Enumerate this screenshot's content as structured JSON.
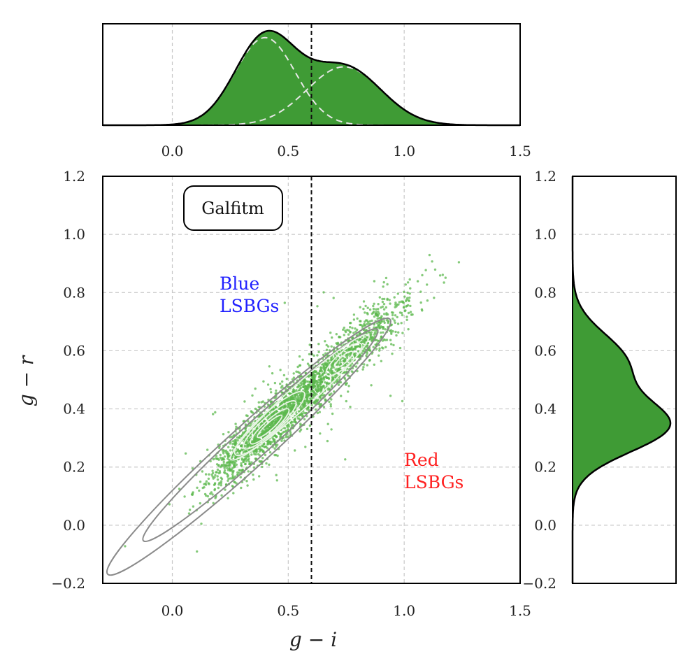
{
  "colors": {
    "hist_fill": "#3f9b35",
    "scatter": "#5cb84d",
    "inner_contour": "#e8f4e4",
    "outer_contour": "#8a8a8a",
    "blue_label": "#2020ff",
    "red_label": "#ff2020"
  },
  "chart_data": [
    {
      "type": "scatter",
      "panel": "main",
      "xlabel": "g − i",
      "ylabel": "g − r",
      "xlim": [
        -0.3,
        1.5
      ],
      "ylim": [
        -0.2,
        1.2
      ],
      "xticks": [
        "0.0",
        "0.5",
        "1.0",
        "1.5"
      ],
      "yticks": [
        "−0.2",
        "0.0",
        "0.2",
        "0.4",
        "0.6",
        "0.8",
        "1.0",
        "1.2"
      ],
      "right_yticks": [
        "−0.2",
        "0.0",
        "0.2",
        "0.4",
        "0.6",
        "0.8",
        "1.0",
        "1.2"
      ],
      "grid": true,
      "divider_x": 0.6,
      "label_box": "Galfitm",
      "annotations": {
        "blue_line1": "Blue",
        "blue_line2": "LSBGs",
        "red_line1": "Red",
        "red_line2": "LSBGs"
      },
      "relation": {
        "slope": 0.72,
        "intercept": 0.04
      },
      "components": [
        {
          "name": "blue",
          "mean_x": 0.42,
          "std_x": 0.13,
          "weight": 0.62
        },
        {
          "name": "red",
          "mean_x": 0.74,
          "std_x": 0.15,
          "weight": 0.38
        }
      ],
      "contours": [
        {
          "center": [
            0.33,
            0.27
          ],
          "a": 0.82,
          "b": 0.09
        },
        {
          "center": [
            0.38,
            0.31
          ],
          "a": 0.68,
          "b": 0.07
        },
        {
          "center": [
            0.55,
            0.44
          ],
          "a": 0.4,
          "b": 0.05
        },
        {
          "center": [
            0.42,
            0.35
          ],
          "a": 0.2,
          "b": 0.045
        },
        {
          "center": [
            0.42,
            0.345
          ],
          "a": 0.15,
          "b": 0.035
        },
        {
          "center": [
            0.42,
            0.34
          ],
          "a": 0.11,
          "b": 0.025
        },
        {
          "center": [
            0.42,
            0.34
          ],
          "a": 0.07,
          "b": 0.015
        },
        {
          "center": [
            0.74,
            0.57
          ],
          "a": 0.1,
          "b": 0.03
        },
        {
          "center": [
            0.74,
            0.57
          ],
          "a": 0.05,
          "b": 0.015
        }
      ]
    },
    {
      "type": "area",
      "panel": "top",
      "xlim": [
        -0.3,
        1.5
      ],
      "xticks": [
        "0.0",
        "0.5",
        "1.0",
        "1.5"
      ],
      "grid": true,
      "divider_x": 0.6,
      "components": [
        {
          "mean": 0.4,
          "std": 0.13,
          "weight": 0.6
        },
        {
          "mean": 0.74,
          "std": 0.16,
          "weight": 0.4
        }
      ]
    },
    {
      "type": "area",
      "panel": "right",
      "orientation": "horizontal",
      "ylim": [
        -0.2,
        1.2
      ],
      "grid": true,
      "components": [
        {
          "mean": 0.34,
          "std": 0.09,
          "weight": 0.64
        },
        {
          "mean": 0.56,
          "std": 0.1,
          "weight": 0.36
        }
      ]
    }
  ]
}
